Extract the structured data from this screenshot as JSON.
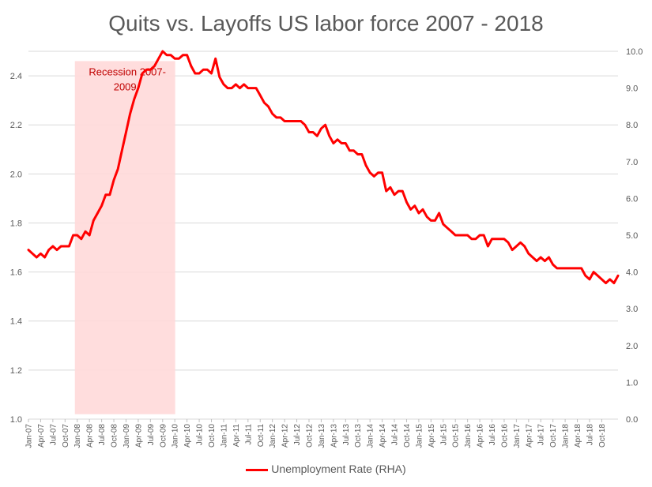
{
  "chart_data": {
    "type": "line",
    "title": "Quits vs. Layoffs US labor force 2007 - 2018",
    "x_tick_labels": [
      "Jan-07",
      "Apr-07",
      "Jul-07",
      "Oct-07",
      "Jan-08",
      "Apr-08",
      "Jul-08",
      "Oct-08",
      "Jan-09",
      "Apr-09",
      "Jul-09",
      "Oct-09",
      "Jan-10",
      "Apr-10",
      "Jul-10",
      "Oct-10",
      "Jan-11",
      "Apr-11",
      "Jul-11",
      "Oct-11",
      "Jan-12",
      "Apr-12",
      "Jul-12",
      "Oct-12",
      "Jan-13",
      "Apr-13",
      "Jul-13",
      "Oct-13",
      "Jan-14",
      "Apr-14",
      "Jul-14",
      "Oct-14",
      "Jan-15",
      "Apr-15",
      "Jul-15",
      "Oct-15",
      "Jan-16",
      "Apr-16",
      "Jul-16",
      "Oct-16",
      "Jan-17",
      "Apr-17",
      "Jul-17",
      "Oct-17",
      "Jan-18",
      "Apr-18",
      "Jul-18",
      "Oct-18"
    ],
    "y_left": {
      "ylim": [
        1.0,
        2.5
      ],
      "ticks": [
        "1.0",
        "1.2",
        "1.4",
        "1.6",
        "1.8",
        "2.0",
        "2.2",
        "2.4"
      ]
    },
    "y_right": {
      "ylim": [
        0.0,
        10.0
      ],
      "ticks": [
        "0.0",
        "1.0",
        "2.0",
        "3.0",
        "4.0",
        "5.0",
        "6.0",
        "7.0",
        "8.0",
        "9.0",
        "10.0"
      ]
    },
    "grid": true,
    "legend_position": "bottom",
    "annotation": {
      "text_line1": "Recession 2007-",
      "text_line2": "2009",
      "start": "Jan-08",
      "end": "Dec-09"
    },
    "series": [
      {
        "name": "Unemployment Rate (RHA)",
        "axis": "right",
        "color": "#ff0000",
        "values": [
          4.6,
          4.5,
          4.4,
          4.5,
          4.4,
          4.6,
          4.7,
          4.6,
          4.7,
          4.7,
          4.7,
          5.0,
          5.0,
          4.9,
          5.1,
          5.0,
          5.4,
          5.6,
          5.8,
          6.1,
          6.1,
          6.5,
          6.8,
          7.3,
          7.8,
          8.3,
          8.7,
          9.0,
          9.4,
          9.5,
          9.5,
          9.6,
          9.8,
          10.0,
          9.9,
          9.9,
          9.8,
          9.8,
          9.9,
          9.9,
          9.6,
          9.4,
          9.4,
          9.5,
          9.5,
          9.4,
          9.8,
          9.3,
          9.1,
          9.0,
          9.0,
          9.1,
          9.0,
          9.1,
          9.0,
          9.0,
          9.0,
          8.8,
          8.6,
          8.5,
          8.3,
          8.2,
          8.2,
          8.1,
          8.1,
          8.1,
          8.1,
          8.1,
          8.0,
          7.8,
          7.8,
          7.7,
          7.9,
          8.0,
          7.7,
          7.5,
          7.6,
          7.5,
          7.5,
          7.3,
          7.3,
          7.2,
          7.2,
          6.9,
          6.7,
          6.6,
          6.7,
          6.7,
          6.2,
          6.3,
          6.1,
          6.2,
          6.2,
          5.9,
          5.7,
          5.8,
          5.6,
          5.7,
          5.5,
          5.4,
          5.4,
          5.6,
          5.3,
          5.2,
          5.1,
          5.0,
          5.0,
          5.0,
          5.0,
          4.9,
          4.9,
          5.0,
          5.0,
          4.7,
          4.9,
          4.9,
          4.9,
          4.9,
          4.8,
          4.6,
          4.7,
          4.8,
          4.7,
          4.5,
          4.4,
          4.3,
          4.4,
          4.3,
          4.4,
          4.2,
          4.1,
          4.1,
          4.1,
          4.1,
          4.1,
          4.1,
          4.1,
          3.9,
          3.8,
          4.0,
          3.9,
          3.8,
          3.7,
          3.8,
          3.7,
          3.9
        ]
      }
    ]
  }
}
